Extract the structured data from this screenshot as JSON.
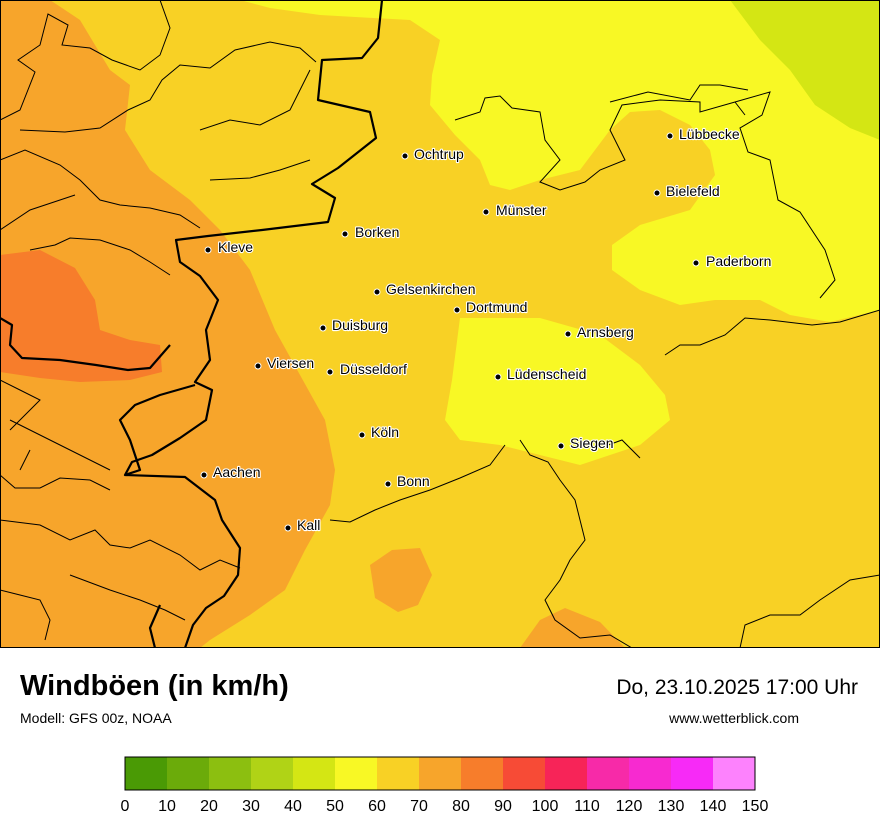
{
  "header": {
    "title": "Windböen (in km/h)",
    "model": "Modell: GFS 00z, NOAA",
    "datetime": "Do, 23.10.2025 17:00 Uhr",
    "website": "www.wetterblick.com"
  },
  "map": {
    "cities": [
      {
        "name": "Lübbecke"
      },
      {
        "name": "Ochtrup"
      },
      {
        "name": "Bielefeld"
      },
      {
        "name": "Münster"
      },
      {
        "name": "Kleve"
      },
      {
        "name": "Borken"
      },
      {
        "name": "Paderborn"
      },
      {
        "name": "Gelsenkirchen"
      },
      {
        "name": "Dortmund"
      },
      {
        "name": "Duisburg"
      },
      {
        "name": "Arnsberg"
      },
      {
        "name": "Viersen"
      },
      {
        "name": "Düsseldorf"
      },
      {
        "name": "Lüdenscheid"
      },
      {
        "name": "Köln"
      },
      {
        "name": "Siegen"
      },
      {
        "name": "Aachen"
      },
      {
        "name": "Bonn"
      },
      {
        "name": "Kall"
      }
    ],
    "colors": {
      "gust_50_60": "#f8f825",
      "gust_60_70": "#f8d125",
      "gust_70_80": "#f7a52b",
      "gust_80_90": "#f77d2b",
      "gust_40_50": "#d4e614"
    }
  },
  "legend": {
    "ticks": [
      "0",
      "10",
      "20",
      "30",
      "40",
      "50",
      "60",
      "70",
      "80",
      "90",
      "100",
      "110",
      "120",
      "130",
      "140",
      "150"
    ],
    "colors": [
      "#4a9a05",
      "#6bab0a",
      "#8cbf10",
      "#b0d316",
      "#d4e614",
      "#f8f825",
      "#f8d125",
      "#f7a52b",
      "#f77d2b",
      "#f74b36",
      "#f72458",
      "#f72aa8",
      "#f72ad0",
      "#f72af7",
      "#fd82fd"
    ]
  }
}
